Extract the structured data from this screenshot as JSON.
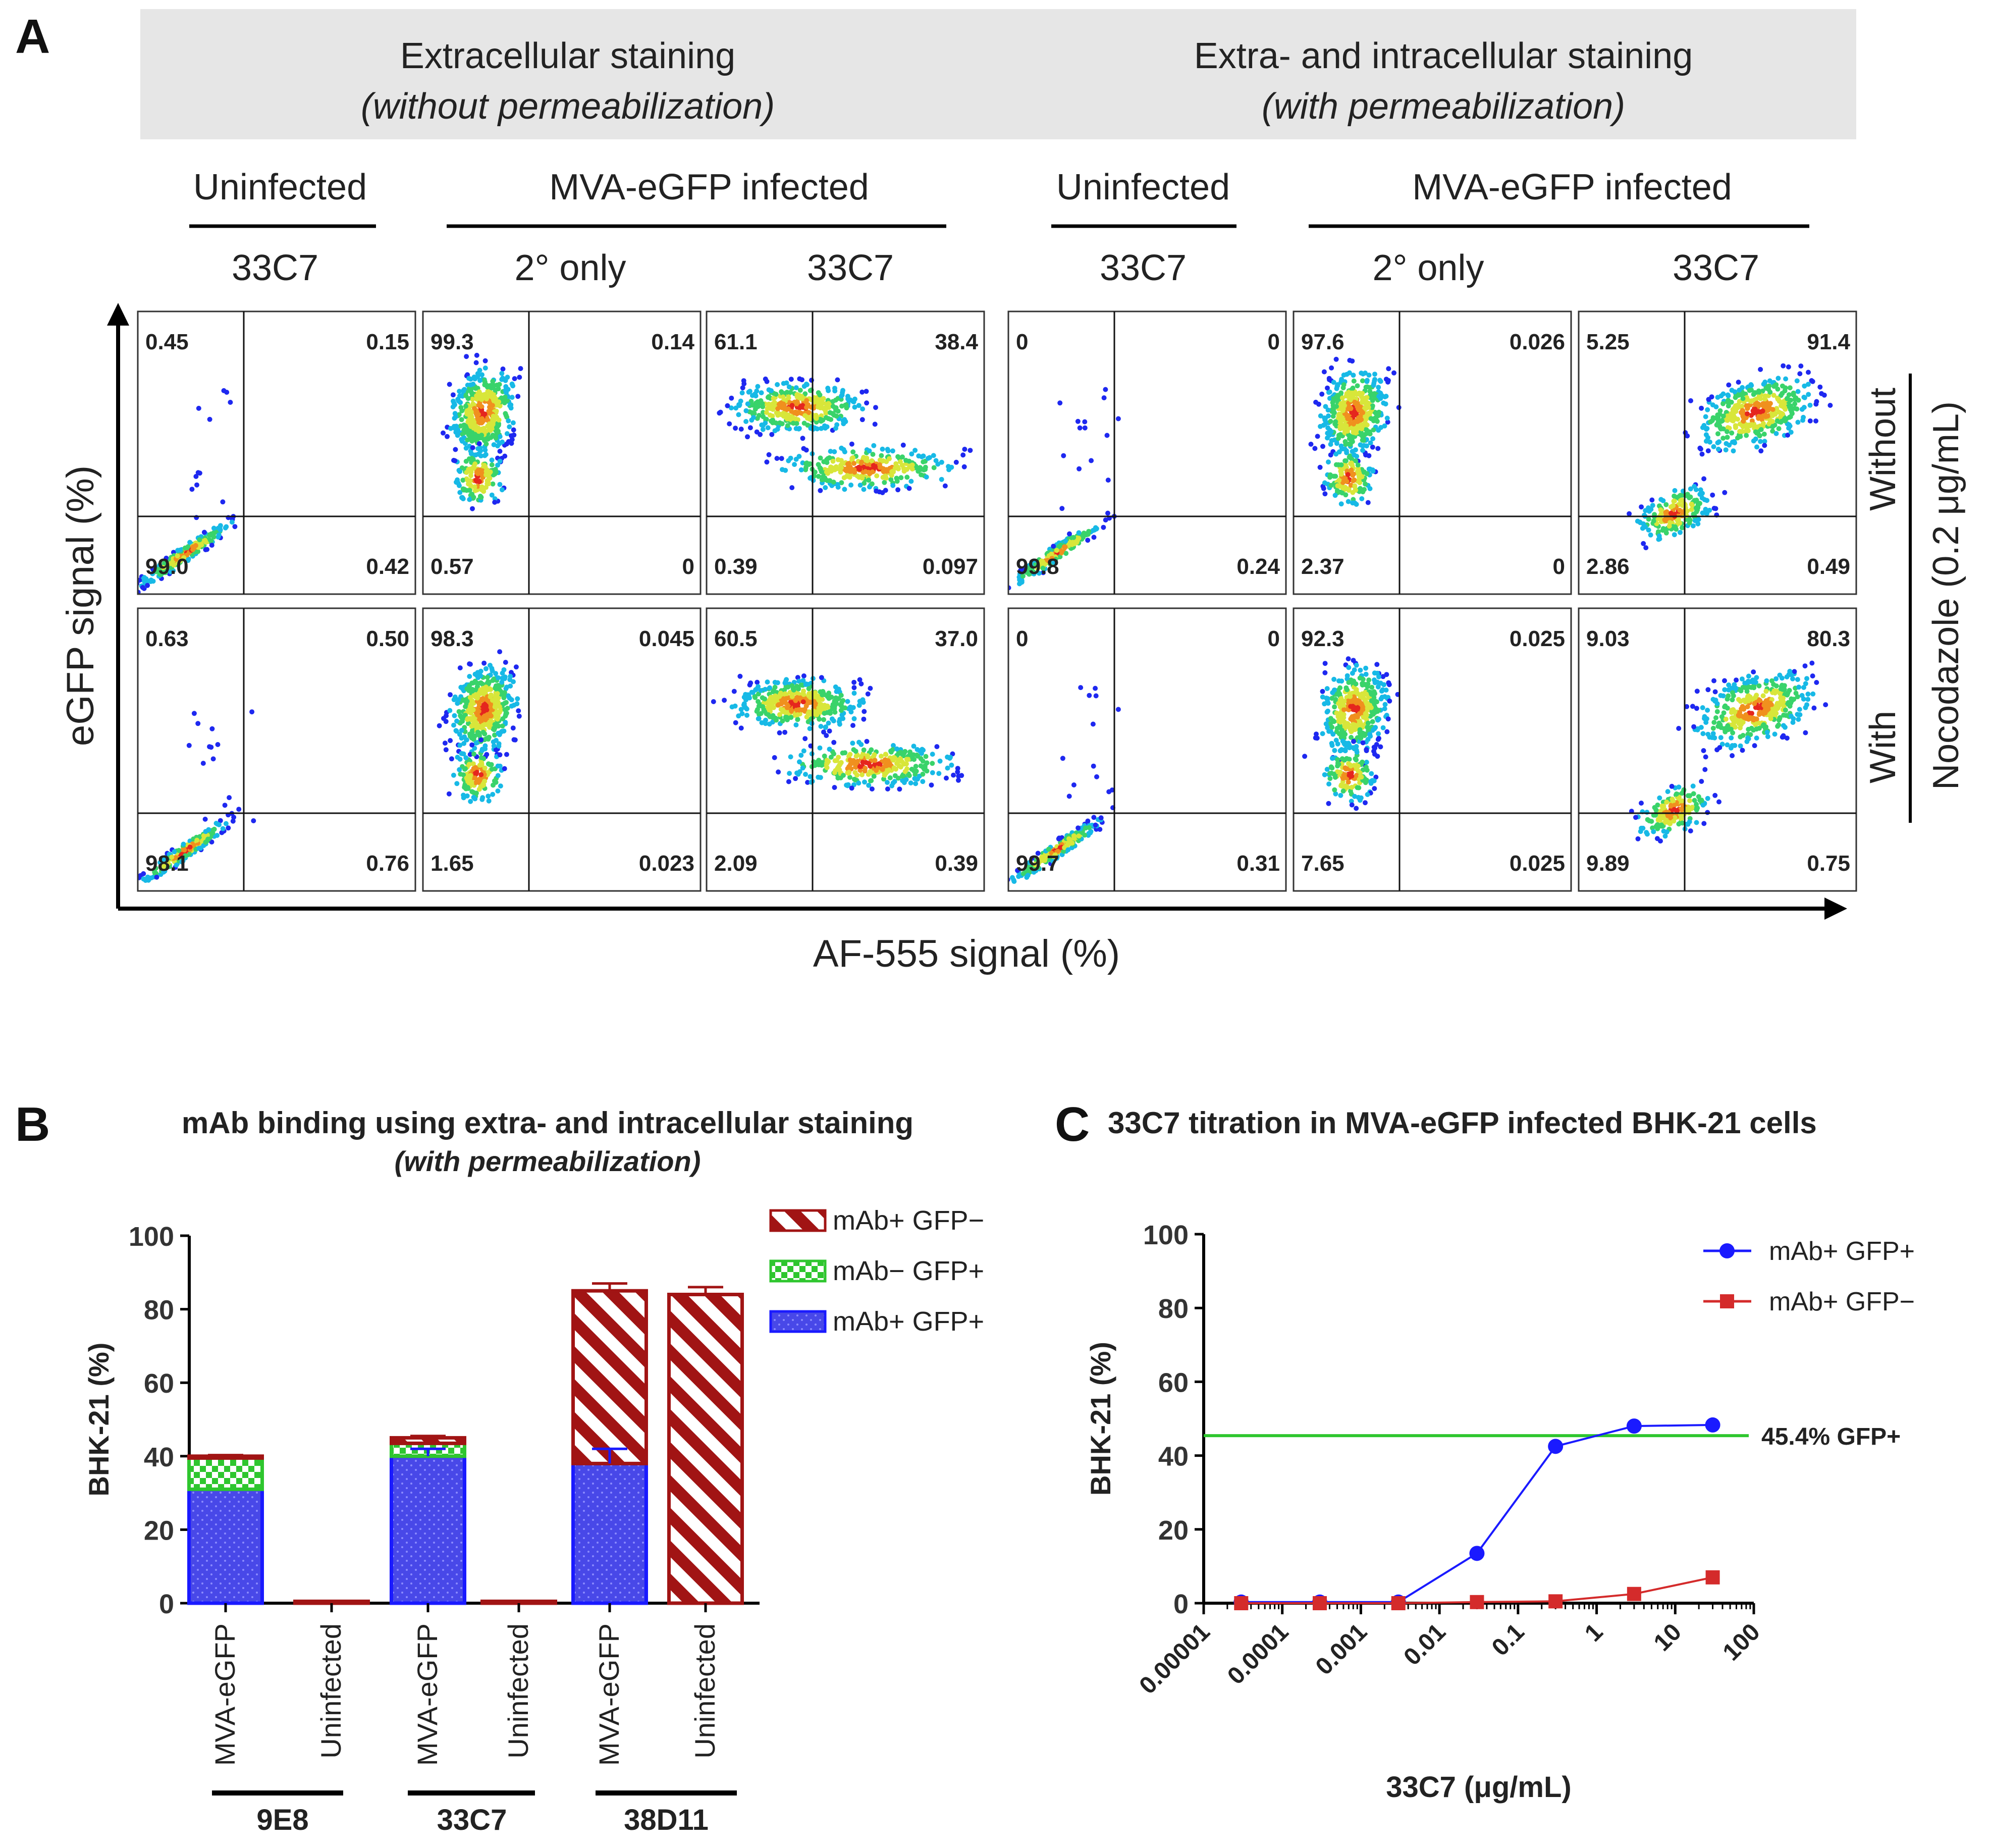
{
  "colors": {
    "blue": "#1a1aff",
    "red": "#d42b2b",
    "darkred": "#a11414",
    "green": "#2ec62e",
    "header_bg": "#e6e6e6"
  },
  "panel_a": {
    "label": "A",
    "header_left_title": "Extracellular staining",
    "header_left_sub": "(without permeabilization)",
    "header_right_title": "Extra- and intracellular staining",
    "header_right_sub": "(with permeabilization)",
    "uninfected": "Uninfected",
    "infected": "MVA-eGFP infected",
    "col_labels": [
      "33C7",
      "2° only",
      "33C7",
      "33C7",
      "2° only",
      "33C7"
    ],
    "y_axis_label": "eGFP signal (%)",
    "x_axis_label": "AF-555 signal (%)",
    "row_without": "Without",
    "row_with": "With",
    "nocodazole": "Nocodazole (0.2 μg/mL)",
    "rows": [
      [
        {
          "ul": "0.45",
          "ur": "0.15",
          "ll": "99.0",
          "lr": "0.42",
          "pattern": "diag"
        },
        {
          "ul": "99.3",
          "ur": "0.14",
          "ll": "0.57",
          "lr": "0",
          "pattern": "upleft"
        },
        {
          "ul": "61.1",
          "ur": "38.4",
          "ll": "0.39",
          "lr": "0.097",
          "pattern": "spread"
        },
        {
          "ul": "0",
          "ur": "0",
          "ll": "99.8",
          "lr": "0.24",
          "pattern": "diag"
        },
        {
          "ul": "97.6",
          "ur": "0.026",
          "ll": "2.37",
          "lr": "0",
          "pattern": "upleft"
        },
        {
          "ul": "5.25",
          "ur": "91.4",
          "ll": "2.86",
          "lr": "0.49",
          "pattern": "upright"
        }
      ],
      [
        {
          "ul": "0.63",
          "ur": "0.50",
          "ll": "98.1",
          "lr": "0.76",
          "pattern": "diag"
        },
        {
          "ul": "98.3",
          "ur": "0.045",
          "ll": "1.65",
          "lr": "0.023",
          "pattern": "upleft"
        },
        {
          "ul": "60.5",
          "ur": "37.0",
          "ll": "2.09",
          "lr": "0.39",
          "pattern": "spread"
        },
        {
          "ul": "0",
          "ur": "0",
          "ll": "99.7",
          "lr": "0.31",
          "pattern": "diag"
        },
        {
          "ul": "92.3",
          "ur": "0.025",
          "ll": "7.65",
          "lr": "0.025",
          "pattern": "upleft"
        },
        {
          "ul": "9.03",
          "ur": "80.3",
          "ll": "9.89",
          "lr": "0.75",
          "pattern": "upright"
        }
      ]
    ]
  },
  "panel_b": {
    "label": "B",
    "title": "mAb binding using extra- and intracellular staining",
    "subtitle": "(with permeabilization)",
    "chart_data": {
      "type": "bar",
      "stacked": true,
      "categories": [
        "MVA-eGFP",
        "Uninfected",
        "MVA-eGFP",
        "Uninfected",
        "MVA-eGFP",
        "Uninfected"
      ],
      "groups": [
        "9E8",
        "33C7",
        "38D11"
      ],
      "series": [
        {
          "name": "mAb+ GFP+",
          "values": [
            31,
            0,
            40,
            0,
            38,
            0
          ]
        },
        {
          "name": "mAb− GFP+",
          "values": [
            8.5,
            0,
            3.5,
            0,
            0,
            0
          ]
        },
        {
          "name": "mAb+ GFP−",
          "values": [
            0.5,
            0.5,
            1.5,
            0.5,
            47,
            84
          ]
        }
      ],
      "error_bars": [
        40.3,
        null,
        45.5,
        null,
        87,
        86
      ],
      "inner_error": [
        null,
        null,
        42,
        null,
        42,
        null
      ],
      "ylabel": "BHK-21 (%)",
      "ylim": [
        0,
        100
      ],
      "yticks": [
        0,
        20,
        40,
        60,
        80,
        100
      ],
      "legend": [
        "mAb+ GFP−",
        "mAb− GFP+",
        "mAb+ GFP+"
      ]
    }
  },
  "panel_c": {
    "label": "C",
    "title": "33C7 titration in MVA-eGFP infected BHK-21 cells",
    "chart_data": {
      "type": "line",
      "xscale": "log",
      "x": [
        3e-05,
        0.0003,
        0.003,
        0.03,
        0.3,
        3,
        30
      ],
      "series": [
        {
          "name": "mAb+ GFP+",
          "values": [
            0.3,
            0.3,
            0.3,
            13.5,
            42.5,
            48,
            48.3
          ]
        },
        {
          "name": "mAb+ GFP−",
          "values": [
            0,
            0,
            0,
            0.3,
            0.5,
            2.5,
            7
          ]
        }
      ],
      "reference_line": {
        "y": 45.4,
        "label": "45.4% GFP+"
      },
      "xlabel": "33C7 (μg/mL)",
      "ylabel": "BHK-21 (%)",
      "ylim": [
        0,
        100
      ],
      "yticks": [
        0,
        20,
        40,
        60,
        80,
        100
      ],
      "xticks": [
        "0.00001",
        "0.0001",
        "0.001",
        "0.01",
        "0.1",
        "1",
        "10",
        "100"
      ]
    }
  }
}
